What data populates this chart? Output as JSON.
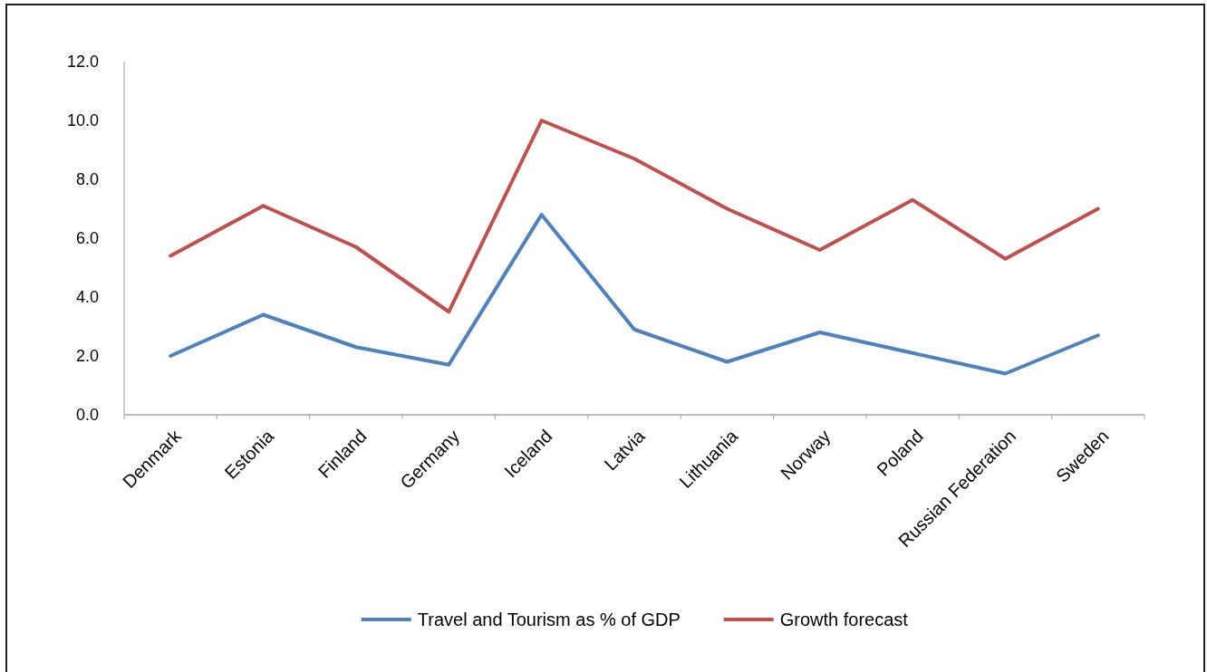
{
  "chart_data": {
    "type": "line",
    "categories": [
      "Denmark",
      "Estonia",
      "Finland",
      "Germany",
      "Iceland",
      "Latvia",
      "Lithuania",
      "Norway",
      "Poland",
      "Russian Federation",
      "Sweden"
    ],
    "series": [
      {
        "name": "Travel and Tourism as % of GDP",
        "color": "#4f81bd",
        "values": [
          2.0,
          3.4,
          2.3,
          1.7,
          6.8,
          2.9,
          1.8,
          2.8,
          2.1,
          1.4,
          2.7
        ]
      },
      {
        "name": "Growth forecast",
        "color": "#c0504d",
        "values": [
          5.4,
          7.1,
          5.7,
          3.5,
          10.0,
          8.7,
          7.0,
          5.6,
          7.3,
          5.3,
          7.0
        ]
      }
    ],
    "ylim": [
      0,
      12
    ],
    "yticks": [
      {
        "value": 0,
        "label": "0.0"
      },
      {
        "value": 2,
        "label": "2.0"
      },
      {
        "value": 4,
        "label": "4.0"
      },
      {
        "value": 6,
        "label": "6.0"
      },
      {
        "value": 8,
        "label": "8.0"
      },
      {
        "value": 10,
        "label": "10.0"
      },
      {
        "value": 12,
        "label": "12.0"
      }
    ],
    "grid": false,
    "legend": "bottom",
    "marker": "none",
    "line_style": "solid"
  }
}
